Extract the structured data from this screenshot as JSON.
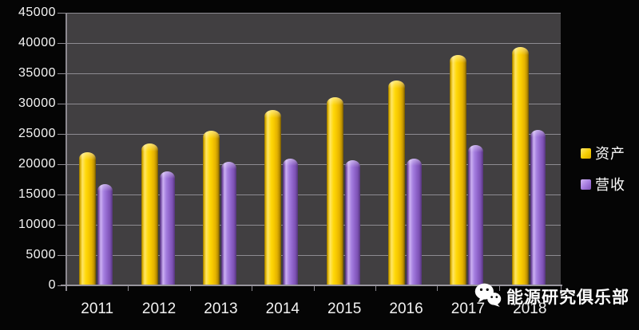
{
  "chart_data": {
    "type": "bar",
    "title": "",
    "xlabel": "",
    "ylabel": "",
    "categories": [
      "2011",
      "2012",
      "2013",
      "2014",
      "2015",
      "2016",
      "2017",
      "2018"
    ],
    "series": [
      {
        "name": "资产",
        "color": "#f7c800",
        "values": [
          22000,
          23400,
          25500,
          29000,
          31100,
          33800,
          38000,
          39300
        ]
      },
      {
        "name": "营收",
        "color": "#9166cc",
        "values": [
          16700,
          18800,
          20400,
          20900,
          20600,
          20900,
          23100,
          25700
        ]
      }
    ],
    "ylim": [
      0,
      45000
    ],
    "yticks": [
      0,
      5000,
      10000,
      15000,
      20000,
      25000,
      30000,
      35000,
      40000,
      45000
    ],
    "grid": true,
    "legend_position": "right",
    "plot_background": "#413f41",
    "page_background": "#050505",
    "gridline_color": "#96939a",
    "text_color": "#f2f2f2"
  },
  "legend": {
    "items": [
      {
        "label": "资产",
        "color": "#f7c800"
      },
      {
        "label": "营收",
        "color": "#9166cc"
      }
    ]
  },
  "watermark": {
    "icon": "wechat-icon",
    "label": "能源研究俱乐部"
  }
}
